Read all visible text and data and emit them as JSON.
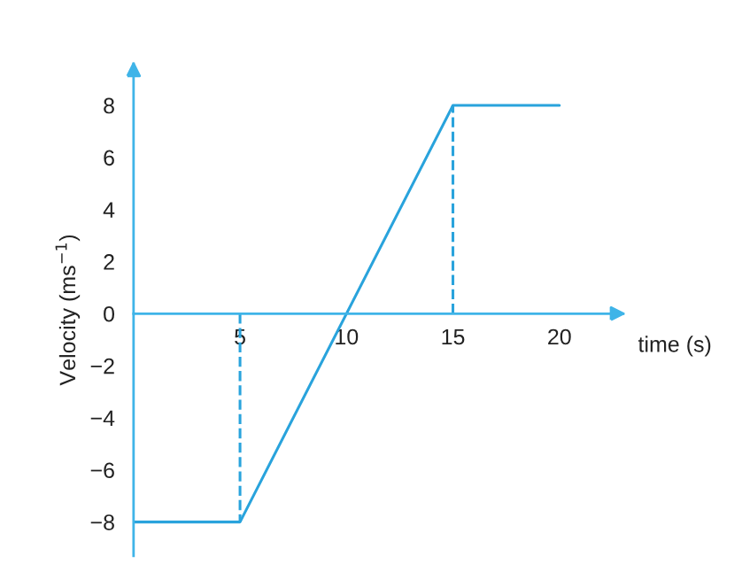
{
  "chart_data": {
    "type": "line",
    "xlabel": "time (s)",
    "ylabel": "Velocity (ms$^{−1}$)",
    "xlim": [
      0,
      23
    ],
    "ylim": [
      -9.3,
      9.6
    ],
    "xticks": [
      5,
      10,
      15,
      20
    ],
    "yticks": [
      -8,
      -6,
      -4,
      -2,
      0,
      2,
      4,
      6,
      8
    ],
    "grid": false,
    "marker": "none",
    "series": [
      {
        "x": [
          0,
          5,
          15,
          20
        ],
        "values": [
          -8,
          -8,
          8,
          8
        ],
        "color": "#29a3dc",
        "line_style": "solid"
      },
      {
        "x": [
          5,
          5
        ],
        "values": [
          0,
          -8
        ],
        "color": "#29a3dc",
        "line_style": "dashed"
      },
      {
        "x": [
          15,
          15
        ],
        "values": [
          0,
          8
        ],
        "color": "#29a3dc",
        "line_style": "dashed"
      }
    ]
  }
}
